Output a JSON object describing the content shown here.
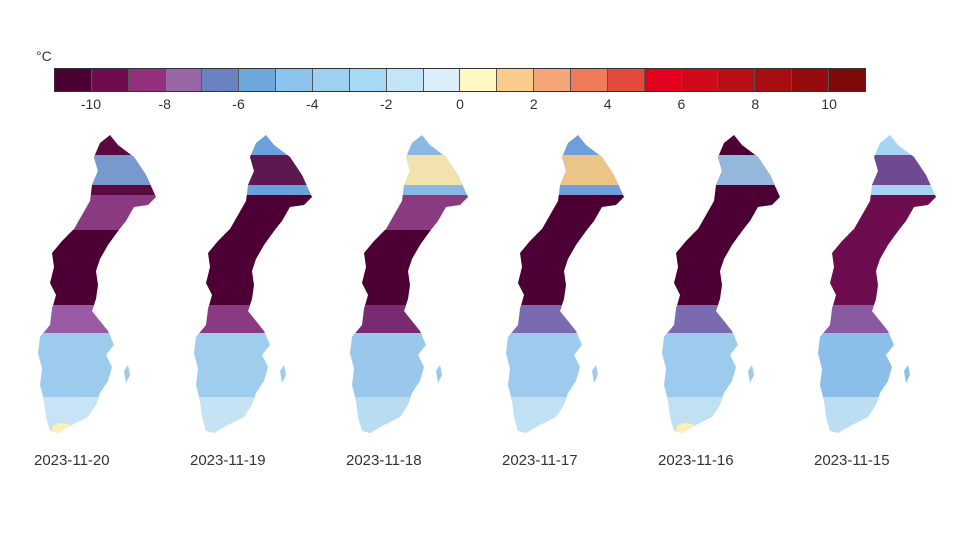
{
  "legend": {
    "unit": "°C",
    "colors": [
      "#4a0031",
      "#6d0c4f",
      "#93307d",
      "#9967a5",
      "#6a82c1",
      "#6ea7db",
      "#8bc3ec",
      "#9fd0f0",
      "#a6daf4",
      "#c3e5f6",
      "#dbeef9",
      "#fff7c4",
      "#f9cc8b",
      "#f5a57a",
      "#ee7b5a",
      "#e54b3b",
      "#e3001f",
      "#d00a1a",
      "#bb0f17",
      "#a80d12",
      "#950b0e",
      "#7d0a08"
    ],
    "tick_labels": [
      "-10",
      "-8",
      "-6",
      "-4",
      "-2",
      "0",
      "2",
      "4",
      "6",
      "8",
      "10"
    ]
  },
  "maps": [
    {
      "date": "2023-11-20",
      "north": "#5a0a40",
      "north_edge": "#7aa9de",
      "mid_band": "#8a3a80",
      "mid": "#4d0034",
      "south_band": "#9a5aa4",
      "south": "#9ccbee",
      "tip": "#c8e3f5",
      "spot": "#fdf0b0"
    },
    {
      "date": "2023-11-19",
      "north": "#6aa1dc",
      "north_edge": "#5a0a40",
      "mid_band": "#4d0034",
      "mid": "#4d0034",
      "south_band": "#8a3a80",
      "south": "#9fcdee",
      "tip": "#c6e3f5",
      "spot": ""
    },
    {
      "date": "2023-11-18",
      "north": "#8ab8e4",
      "north_edge": "#fde7a8",
      "mid_band": "#8a3a80",
      "mid": "#4d0034",
      "south_band": "#7a2a70",
      "south": "#9ac8ec",
      "tip": "#b8dcf2",
      "spot": ""
    },
    {
      "date": "2023-11-17",
      "north": "#6f9fd8",
      "north_edge": "#f8c880",
      "mid_band": "#4d0034",
      "mid": "#4d0034",
      "south_band": "#7a6ab0",
      "south": "#9ecbed",
      "tip": "#c0e0f4",
      "spot": ""
    },
    {
      "date": "2023-11-16",
      "north": "#4d0034",
      "north_edge": "#9ccbee",
      "mid_band": "#4d0034",
      "mid": "#4d0034",
      "south_band": "#7a6ab0",
      "south": "#9ccbee",
      "tip": "#c0e0f4",
      "spot": "#fdf0b0"
    },
    {
      "date": "2023-11-15",
      "north": "#a6d4f2",
      "north_edge": "#6a3a88",
      "mid_band": "#6d0c4f",
      "mid": "#6d0c4f",
      "south_band": "#8a5aa0",
      "south": "#8bbfea",
      "tip": "#bcdef3",
      "spot": ""
    }
  ]
}
